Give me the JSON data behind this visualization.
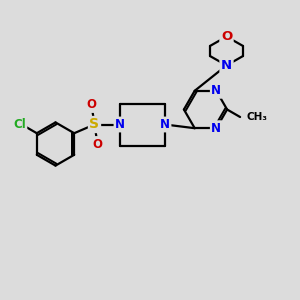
{
  "bg_color": "#dcdcdc",
  "bond_color": "#000000",
  "bond_width": 1.6,
  "N_color": "#0000ee",
  "O_color": "#cc0000",
  "Cl_color": "#22aa22",
  "S_color": "#ccaa00",
  "font_size": 8.5,
  "figsize": [
    3.0,
    3.0
  ],
  "dpi": 100,
  "xlim": [
    0,
    10
  ],
  "ylim": [
    0,
    10
  ]
}
